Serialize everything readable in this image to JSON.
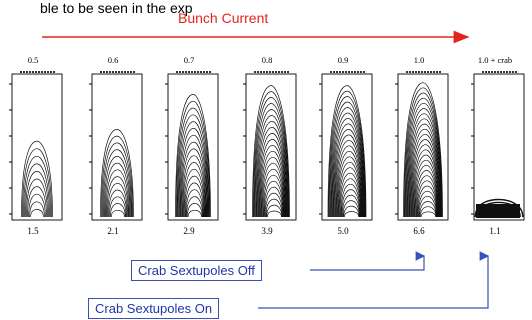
{
  "header": {
    "top_caption": "ble to be seen in the exp",
    "arrow_label": "Bunch Current",
    "arrow_color": "#e0261b"
  },
  "panels": [
    {
      "title": "0.5",
      "value": "1.5"
    },
    {
      "title": "0.6",
      "value": "2.1"
    },
    {
      "title": "0.7",
      "value": "2.9"
    },
    {
      "title": "0.8",
      "value": "3.9"
    },
    {
      "title": "0.9",
      "value": "5.0"
    },
    {
      "title": "1.0",
      "value": "6.6"
    },
    {
      "title": "1.0 + crab",
      "value": "1.1"
    }
  ],
  "callouts": {
    "off_label": "Crab Sextupoles Off",
    "on_label": "Crab Sextupoles On",
    "line_color": "#3a4fb8"
  }
}
